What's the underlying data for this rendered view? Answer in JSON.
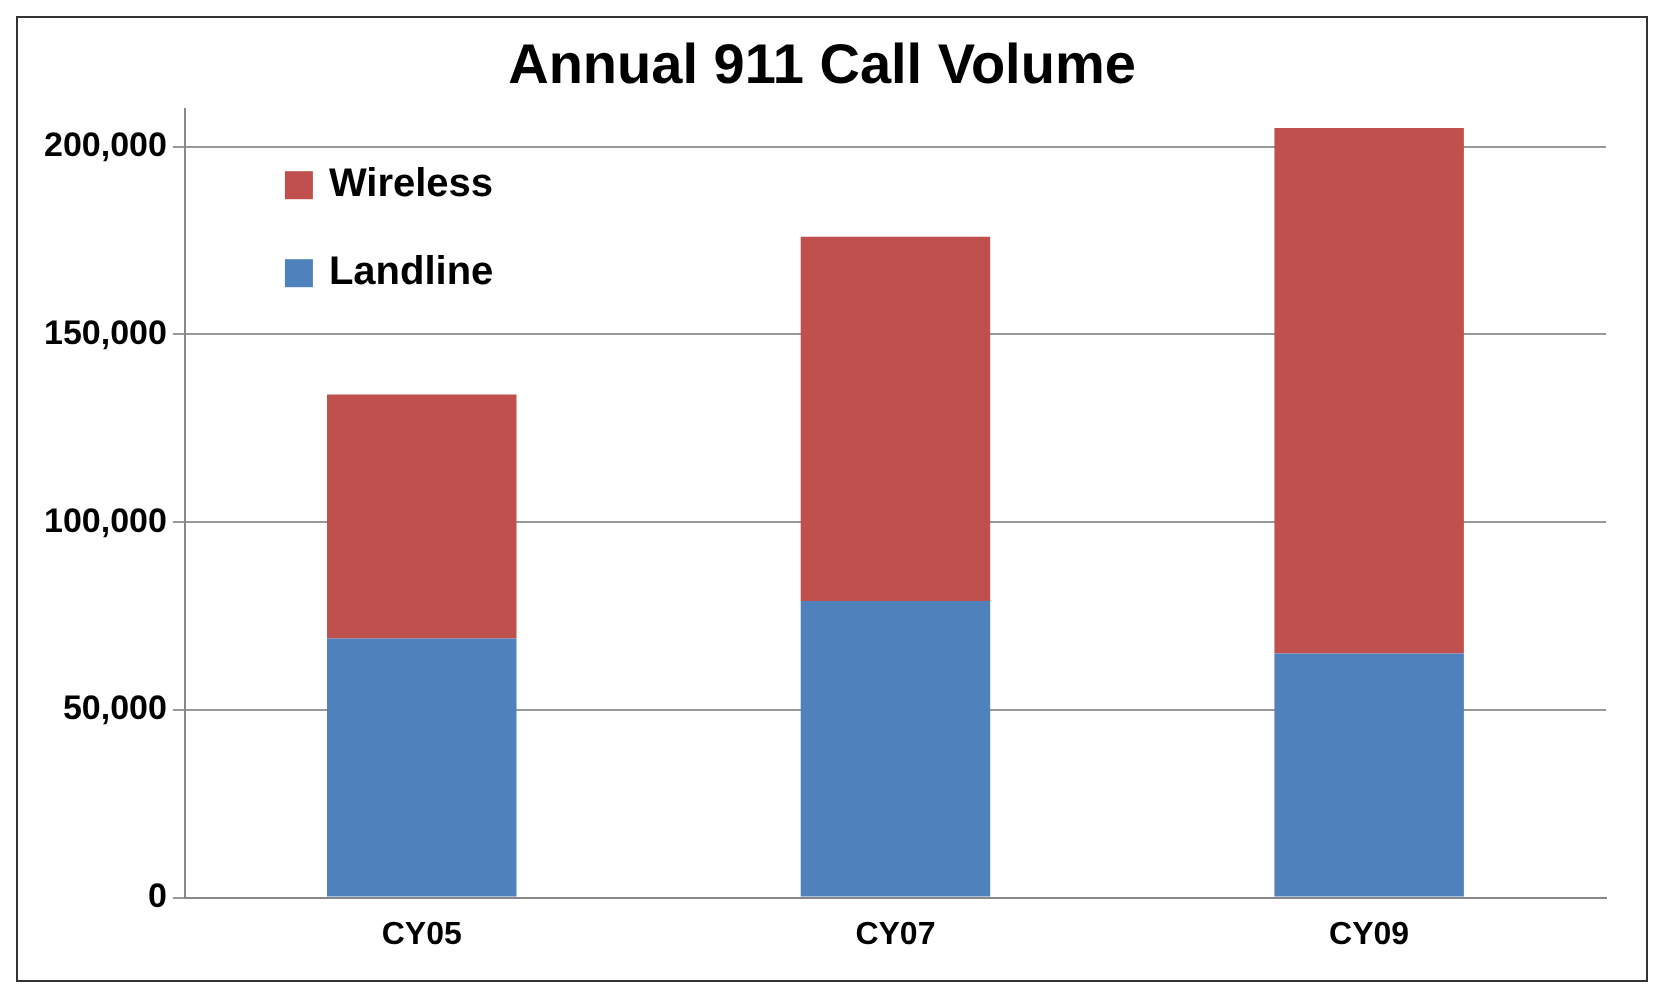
{
  "chart_data": {
    "type": "bar",
    "title": "Annual 911 Call Volume",
    "categories": [
      "CY05",
      "CY07",
      "CY09"
    ],
    "stacked": true,
    "series": [
      {
        "name": "Landline",
        "color": "#4f81bd",
        "values": [
          69000,
          79000,
          65000
        ]
      },
      {
        "name": "Wireless",
        "color": "#c0504d",
        "values": [
          65000,
          97000,
          140000
        ]
      }
    ],
    "ylim": [
      0,
      210000
    ],
    "yticks": [
      {
        "value": 0,
        "label": "0"
      },
      {
        "value": 50000,
        "label": "50,000"
      },
      {
        "value": 100000,
        "label": "100,000"
      },
      {
        "value": 150000,
        "label": "150,000"
      },
      {
        "value": 200000,
        "label": "200,000"
      }
    ],
    "grid": "y",
    "legend": "top left"
  }
}
